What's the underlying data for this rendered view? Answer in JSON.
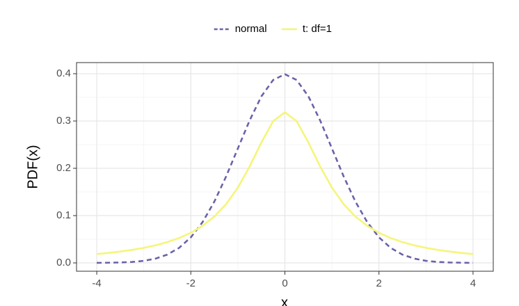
{
  "chart_data": {
    "type": "line",
    "x_label": "x",
    "y_label": "PDF(x)",
    "x": [
      -4,
      -3.75,
      -3.5,
      -3.25,
      -3,
      -2.75,
      -2.5,
      -2.25,
      -2,
      -1.75,
      -1.5,
      -1.25,
      -1,
      -0.75,
      -0.5,
      -0.25,
      0,
      0.25,
      0.5,
      0.75,
      1,
      1.25,
      1.5,
      1.75,
      2,
      2.25,
      2.5,
      2.75,
      3,
      3.25,
      3.5,
      3.75,
      4
    ],
    "series": [
      {
        "name": "normal",
        "color": "#6a63a9",
        "dash": "dashed",
        "values": [
          0.0001,
          0.0004,
          0.0009,
          0.002,
          0.0044,
          0.0091,
          0.0175,
          0.0317,
          0.054,
          0.0863,
          0.1295,
          0.1827,
          0.242,
          0.3011,
          0.3521,
          0.3867,
          0.3989,
          0.3867,
          0.3521,
          0.3011,
          0.242,
          0.1827,
          0.1295,
          0.0863,
          0.054,
          0.0317,
          0.0175,
          0.0091,
          0.0044,
          0.002,
          0.0009,
          0.0004,
          0.0001
        ]
      },
      {
        "name": "t: df=1",
        "color": "#f5f57a",
        "dash": "solid",
        "values": [
          0.0187,
          0.0211,
          0.024,
          0.0275,
          0.0318,
          0.0372,
          0.0439,
          0.0525,
          0.0637,
          0.0784,
          0.0979,
          0.1242,
          0.1592,
          0.2037,
          0.2546,
          0.2996,
          0.3183,
          0.2996,
          0.2546,
          0.2037,
          0.1592,
          0.1242,
          0.0979,
          0.0784,
          0.0637,
          0.0525,
          0.0439,
          0.0372,
          0.0318,
          0.0275,
          0.024,
          0.0211,
          0.0187
        ]
      }
    ],
    "xlim": [
      -4.43,
      4.43
    ],
    "ylim": [
      -0.0176,
      0.4235
    ],
    "xticks": [
      -4,
      -2,
      0,
      2,
      4
    ],
    "yticks": [
      {
        "value": 0,
        "label": "0.0"
      },
      0.1,
      0.2,
      0.3,
      0.4
    ],
    "x_minor_ticks": [
      -3,
      -1,
      1,
      3
    ],
    "y_minor_ticks": [
      0.05,
      0.15,
      0.25,
      0.35
    ],
    "grid": true,
    "legend": "top"
  }
}
